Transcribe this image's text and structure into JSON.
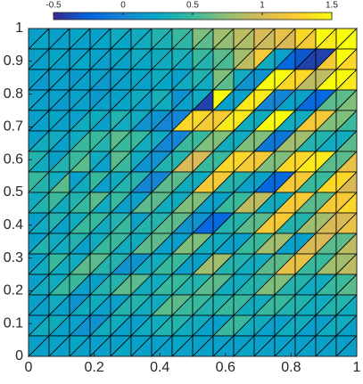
{
  "chart_data": {
    "type": "tripcolor",
    "xlim": [
      0,
      1
    ],
    "ylim": [
      0,
      1
    ],
    "xticks": [
      0,
      0.2,
      0.4,
      0.6,
      0.8,
      1
    ],
    "yticks": [
      0,
      0.1,
      0.2,
      0.3,
      0.4,
      0.5,
      0.6,
      0.7,
      0.8,
      0.9,
      1
    ],
    "clim": [
      -0.5,
      1.5
    ],
    "cticks": [
      -0.5,
      0,
      0.5,
      1,
      1.5
    ],
    "colormap": [
      "#352a87",
      "#0363e1",
      "#1485d4",
      "#06a7c6",
      "#38b99e",
      "#92bf73",
      "#d9ba56",
      "#fcce2e",
      "#f9fb0e"
    ],
    "edge_color": "#000000",
    "rows": [
      [
        0.2,
        0.25,
        0.2,
        0.2,
        0.25,
        0.2,
        0.2,
        0.25,
        0.3,
        0.25,
        0.3,
        0.3,
        0.4,
        0.35,
        0.5,
        0.45,
        0.7,
        0.6,
        0.8,
        0.75,
        0.9,
        0.85,
        1.0,
        0.95,
        1.1,
        1.0,
        1.3,
        1.2,
        1.5,
        1.4,
        1.5,
        1.5
      ],
      [
        0.2,
        0.2,
        0.25,
        0.2,
        0.2,
        0.25,
        0.2,
        0.2,
        0.25,
        0.2,
        0.3,
        0.25,
        0.3,
        0.3,
        0.35,
        0.3,
        0.5,
        0.4,
        0.6,
        0.55,
        0.8,
        0.9,
        1.2,
        0.3,
        0.2,
        -0.2,
        -0.3,
        -0.4,
        -0.4,
        1.2,
        1.5,
        1.3
      ],
      [
        0.2,
        0.15,
        0.2,
        0.2,
        0.15,
        0.2,
        0.2,
        0.15,
        0.2,
        0.2,
        0.25,
        0.2,
        0.3,
        0.25,
        0.2,
        0.3,
        0.4,
        0.3,
        0.7,
        0.6,
        0.3,
        0.1,
        0.1,
        1.5,
        1.5,
        1.3,
        1.3,
        0.9,
        0.9,
        1.5,
        1.5,
        1.4
      ],
      [
        0.2,
        0.2,
        0.2,
        0.15,
        0.2,
        0.2,
        0.15,
        0.2,
        0.2,
        0.25,
        0.3,
        0.2,
        0.35,
        0.3,
        0.1,
        0.2,
        0.3,
        -0.4,
        1.5,
        0.2,
        0.2,
        1.4,
        1.4,
        0,
        0,
        0.2,
        0.2,
        -0.2,
        -0.2,
        0.6,
        0.6,
        0.7
      ],
      [
        0.2,
        0.2,
        0.25,
        0.2,
        0.2,
        0.3,
        0.3,
        0.2,
        0.4,
        0.3,
        0.3,
        0.1,
        0.1,
        0.0,
        0.0,
        1.3,
        1.3,
        1.2,
        1.2,
        1.4,
        1.4,
        0.3,
        0.3,
        1.5,
        1.5,
        0.3,
        0.3,
        1.2,
        1.2,
        0.7,
        0.7,
        0.5
      ],
      [
        0.2,
        0.3,
        0.3,
        0.2,
        0.3,
        0.5,
        0.5,
        0.4,
        0.6,
        0.5,
        0.5,
        0.3,
        0.3,
        0.0,
        0.0,
        0.5,
        0.5,
        0.7,
        0.7,
        0.3,
        0.3,
        0.7,
        0.7,
        -0.1,
        -0.1,
        0.8,
        0.8,
        0.4,
        0.4,
        0.3,
        0.3,
        0.6
      ],
      [
        0.4,
        0.3,
        0.2,
        0.4,
        0.5,
        0.6,
        0.3,
        0.2,
        0.6,
        0.5,
        0.3,
        0.1,
        0.1,
        0.4,
        0.4,
        1.0,
        1.0,
        0.5,
        0.5,
        1.3,
        1.3,
        1.2,
        1.2,
        0.7,
        0.7,
        1.3,
        1.3,
        1.4,
        1.4,
        0.6,
        0.6,
        1.1
      ],
      [
        0.5,
        0.4,
        0.3,
        0.6,
        0.2,
        0.3,
        0.5,
        0.2,
        0.3,
        0.4,
        0.4,
        0.0,
        0.0,
        0.6,
        0.6,
        0.3,
        0.3,
        1.2,
        1.2,
        0.4,
        0.4,
        0.2,
        0.2,
        -0.2,
        -0.2,
        1.2,
        1.2,
        0.5,
        0.5,
        1.3,
        1.3,
        1.0
      ],
      [
        0.3,
        0.4,
        0.5,
        0.3,
        0.4,
        0.5,
        0.6,
        0.3,
        0.5,
        0.2,
        0.2,
        0.6,
        0.6,
        0.3,
        0.3,
        0.7,
        0.7,
        0.2,
        0.2,
        0.5,
        0.5,
        0.9,
        0.9,
        0.3,
        0.3,
        1.2,
        1.2,
        0.6,
        0.6,
        1.2,
        1.2,
        1.3
      ],
      [
        0.2,
        0.3,
        0.4,
        0.2,
        0.3,
        0.5,
        0.5,
        0.3,
        0.4,
        0.5,
        0.2,
        0.4,
        0.4,
        0.6,
        0.6,
        0.1,
        0.1,
        -0.2,
        -0.2,
        0.4,
        0.4,
        0.6,
        0.6,
        1.2,
        1.2,
        0.4,
        0.4,
        0.8,
        0.8,
        1.0,
        1.0,
        1.1
      ],
      [
        0.2,
        0.4,
        0.3,
        0.3,
        0.4,
        0.2,
        0.3,
        0.5,
        0.5,
        0.3,
        0.3,
        0.6,
        0.6,
        0.2,
        0.2,
        0.7,
        0.7,
        0.3,
        0.3,
        0.2,
        0.2,
        0.5,
        0.5,
        0.8,
        0.8,
        0.2,
        0.2,
        1.0,
        1.0,
        0.6,
        0.6,
        0.9
      ],
      [
        0.2,
        0.3,
        0.5,
        0.3,
        0.3,
        0.6,
        0.6,
        0.4,
        0.4,
        0.1,
        0.1,
        0.3,
        0.3,
        0.5,
        0.5,
        0.2,
        0.2,
        0.8,
        0.8,
        0.4,
        0.4,
        0.3,
        0.3,
        0.6,
        0.6,
        1.1,
        1.1,
        0.5,
        0.5,
        0.8,
        0.8,
        0.9
      ],
      [
        0.2,
        0.3,
        0.3,
        0.5,
        0.5,
        0.2,
        0.2,
        0.4,
        0.4,
        0.6,
        0.6,
        0.3,
        0.3,
        0.5,
        0.5,
        0.4,
        0.4,
        0.6,
        0.6,
        0.3,
        0.3,
        0.4,
        0.4,
        0.7,
        0.7,
        0.4,
        0.4,
        0.3,
        0.3,
        0.5,
        0.5,
        0.6
      ],
      [
        0.2,
        0.2,
        0.3,
        0.2,
        0.1,
        0.3,
        0.3,
        0.2,
        0.2,
        0.4,
        0.4,
        0.3,
        0.3,
        0.6,
        0.6,
        0.5,
        0.5,
        0.4,
        0.4,
        0.5,
        0.5,
        0.3,
        0.3,
        0.5,
        0.5,
        0.4,
        0.4,
        0.3,
        0.3,
        0.4,
        0.4,
        0.3
      ],
      [
        0.2,
        0.3,
        0.3,
        0.2,
        0.2,
        0.1,
        0.1,
        0.3,
        0.3,
        0.2,
        0.2,
        0.3,
        0.3,
        0.4,
        0.4,
        0.3,
        0.3,
        0.2,
        0.2,
        0.5,
        0.5,
        0.3,
        0.3,
        0.2,
        0.2,
        0.3,
        0.3,
        0.2,
        0.2,
        0.3,
        0.3,
        0.2
      ],
      [
        0.2,
        0.2,
        0.2,
        0.2,
        0.25,
        0.2,
        0.2,
        0.2,
        0.2,
        0.25,
        0.2,
        0.2,
        0.2,
        0.2,
        0.25,
        0.2,
        0.2,
        0.2,
        0.2,
        0.2,
        0.2,
        0.25,
        0.2,
        0.2,
        0.2,
        0.2,
        0.2,
        0.2,
        0.2,
        0.2,
        0.2,
        0.2
      ]
    ]
  }
}
